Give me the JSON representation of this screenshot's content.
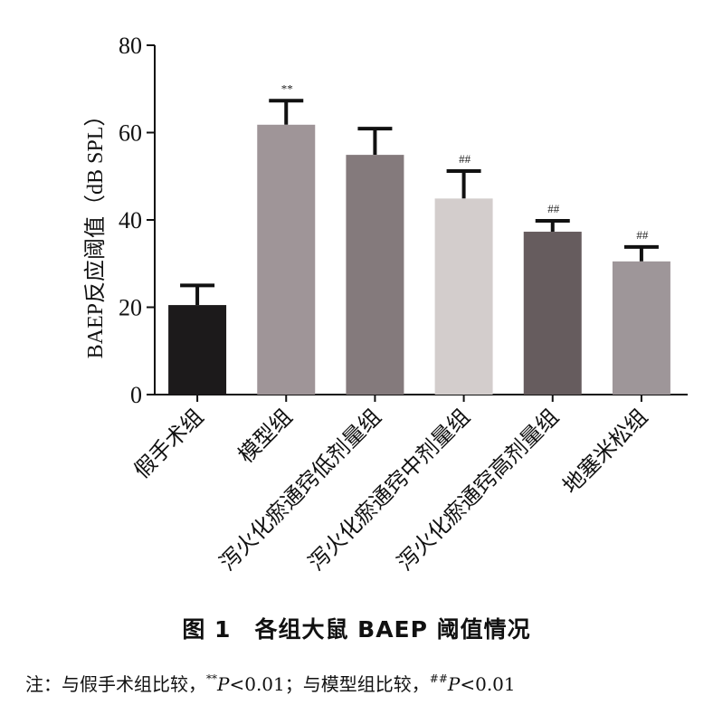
{
  "chart_data": {
    "type": "bar",
    "ylabel": "BAEP反应阈值（dB SPL）",
    "ylim": [
      0,
      80
    ],
    "yticks": [
      "0",
      "20",
      "40",
      "60",
      "80"
    ],
    "categories": [
      "假手术组",
      "模型组",
      "泻火化瘀通窍低剂量组",
      "泻火化瘀通窍中剂量组",
      "泻火化瘀通窍高剂量组",
      "地塞米松组"
    ],
    "values": [
      20.5,
      61.8,
      54.9,
      44.9,
      37.3,
      30.5
    ],
    "error": [
      4.5,
      5.5,
      6.0,
      6.3,
      2.5,
      3.3
    ],
    "significance": [
      "",
      "**",
      "",
      "##",
      "##",
      "##"
    ],
    "bar_colors": [
      "#1c1a1b",
      "#9f9598",
      "#847a7c",
      "#d3cdcc",
      "#665c5e",
      "#9e9699"
    ]
  },
  "caption": {
    "title": "图 1　各组大鼠 BAEP 阈值情况"
  },
  "note": {
    "prefix": "注：与假手术组比较，",
    "mark1": "**",
    "p1": "P",
    "v1": "<0.01；与模型组比较，",
    "mark2": "##",
    "p2": "P",
    "v2": "<0.01"
  }
}
